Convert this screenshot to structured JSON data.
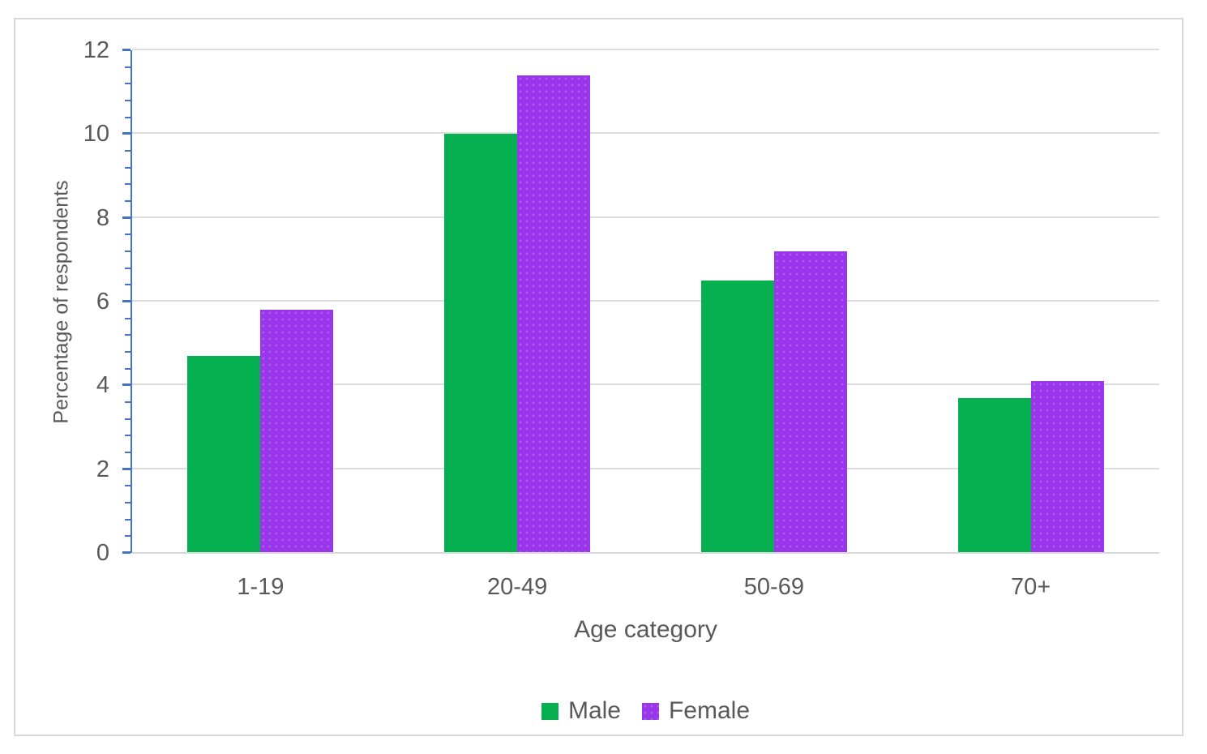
{
  "chart_data": {
    "type": "bar",
    "title": "",
    "categories": [
      "1-19",
      "20-49",
      "50-69",
      "70+"
    ],
    "series": [
      {
        "name": "Male",
        "color": "#06B050",
        "values": [
          4.7,
          10.0,
          6.5,
          3.7
        ]
      },
      {
        "name": "Female",
        "color": "#9936EB",
        "values": [
          5.8,
          11.4,
          7.2,
          4.1
        ]
      }
    ],
    "xlabel": "Age category",
    "ylabel": "Percentage of respondents",
    "ylim": [
      0,
      12
    ],
    "y_major_step": 2,
    "y_minor_step": 0.4,
    "grid": "horizontal-major-only",
    "legend_position": "bottom-center",
    "bar_gap_within_group": 0
  },
  "colors": {
    "axis_line": "#4472C4",
    "gridline": "#DCDCDC",
    "frame_border": "#D9D9D9",
    "text": "#595959",
    "background": "#FFFFFF"
  },
  "legend": {
    "items": [
      {
        "label": "Male"
      },
      {
        "label": "Female"
      }
    ]
  }
}
